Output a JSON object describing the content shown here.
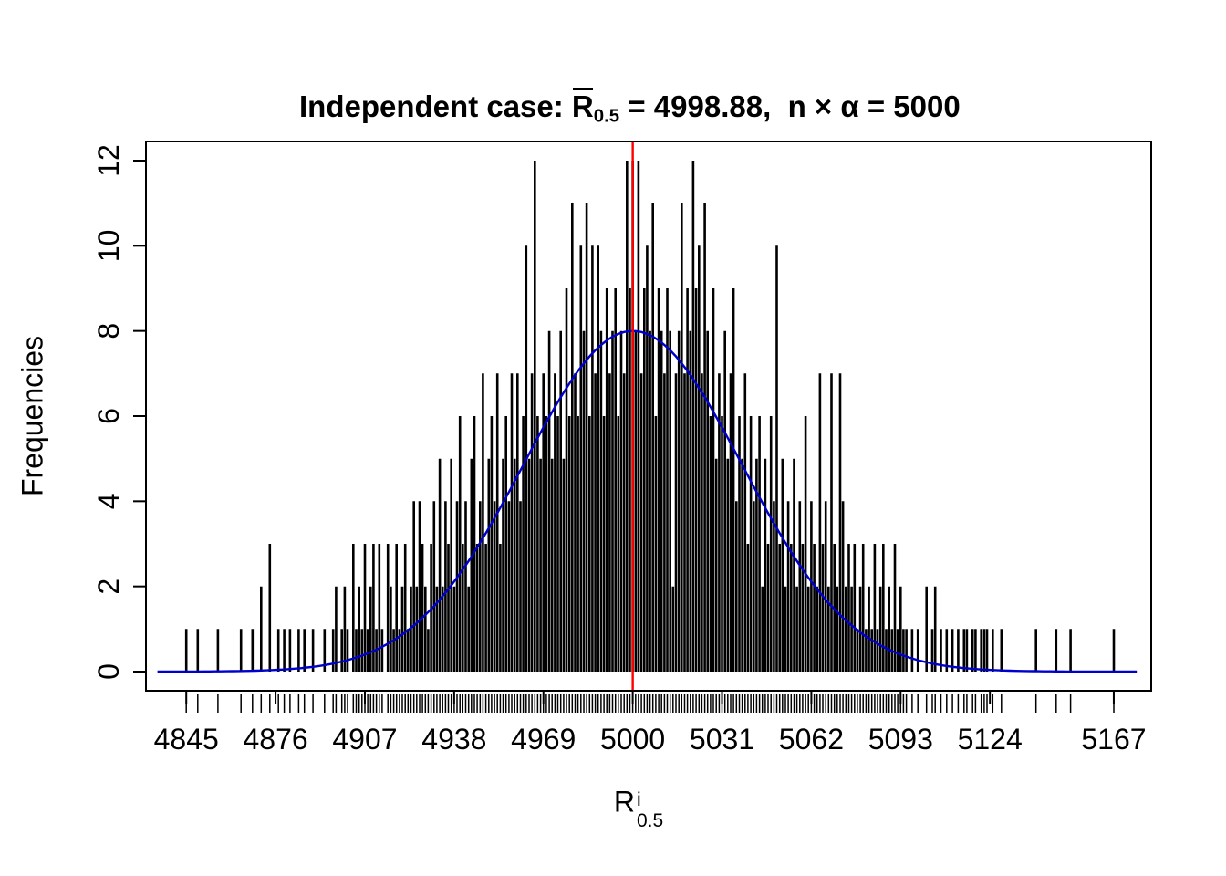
{
  "title_parts": {
    "prefix": "Independent case: ",
    "r_base": "R",
    "r_sub": "0.5",
    "after_r": " = 4998.88,  ",
    "rest": "n × α = 5000"
  },
  "chart_data": {
    "type": "bar",
    "subtype": "frequency-spike-histogram",
    "title": "Independent case: R̄_0.5 = 4998.88, n × α = 5000",
    "xlabel": "R^i_0.5",
    "xlabel_parts": {
      "base": "R",
      "sup": "i",
      "sub": "0.5"
    },
    "ylabel": "Frequencies",
    "x_ticks": [
      4845,
      4876,
      4907,
      4938,
      4969,
      5000,
      5031,
      5062,
      5093,
      5124,
      5167
    ],
    "y_ticks": [
      0,
      2,
      4,
      6,
      8,
      10,
      12
    ],
    "xlim": [
      4831,
      5180
    ],
    "ylim": [
      0,
      12
    ],
    "grid": false,
    "legend": null,
    "bar_color": "#000000",
    "mean_value": 4998.88,
    "ref_line": {
      "x": 5000,
      "color": "#ff0000"
    },
    "curve": {
      "shape": "normal",
      "mean": 5000,
      "sd": 38,
      "peak": 8,
      "color": "#0000cd"
    },
    "rug": true,
    "spikes": {
      "x_start": 4845,
      "step": 1,
      "heights": [
        1,
        0,
        0,
        0,
        1,
        0,
        0,
        0,
        0,
        0,
        0,
        1,
        0,
        0,
        0,
        0,
        0,
        0,
        0,
        1,
        0,
        0,
        0,
        1,
        0,
        0,
        2,
        0,
        0,
        3,
        0,
        0,
        1,
        0,
        1,
        0,
        1,
        0,
        0,
        1,
        0,
        1,
        0,
        0,
        1,
        0,
        0,
        0,
        1,
        0,
        0,
        1,
        2,
        0,
        1,
        2,
        1,
        0,
        3,
        1,
        2,
        1,
        3,
        1,
        2,
        3,
        1,
        3,
        1,
        0,
        3,
        2,
        1,
        3,
        1,
        2,
        3,
        1,
        2,
        4,
        2,
        4,
        3,
        2,
        1,
        3,
        4,
        2,
        5,
        2,
        4,
        3,
        5,
        2,
        4,
        6,
        3,
        4,
        2,
        5,
        6,
        3,
        4,
        7,
        3,
        5,
        6,
        4,
        7,
        3,
        5,
        6,
        4,
        7,
        5,
        7,
        4,
        6,
        10,
        5,
        7,
        12,
        6,
        5,
        7,
        6,
        8,
        5,
        7,
        6,
        8,
        5,
        9,
        6,
        11,
        7,
        6,
        10,
        8,
        11,
        6,
        10,
        7,
        10,
        8,
        6,
        9,
        7,
        8,
        9,
        6,
        8,
        7,
        12,
        9,
        12,
        8,
        12,
        7,
        9,
        10,
        8,
        11,
        6,
        9,
        8,
        7,
        9,
        8,
        2,
        7,
        8,
        11,
        7,
        9,
        8,
        12,
        9,
        10,
        7,
        11,
        8,
        6,
        9,
        5,
        7,
        6,
        8,
        5,
        7,
        9,
        4,
        6,
        5,
        7,
        3,
        6,
        4,
        5,
        6,
        2,
        5,
        3,
        6,
        4,
        10,
        3,
        5,
        2,
        4,
        3,
        5,
        2,
        4,
        3,
        6,
        2,
        4,
        3,
        2,
        7,
        3,
        4,
        2,
        7,
        3,
        2,
        7,
        4,
        2,
        3,
        2,
        3,
        1,
        2,
        3,
        1,
        2,
        1,
        3,
        1,
        2,
        3,
        1,
        2,
        1,
        3,
        1,
        2,
        1,
        1,
        0,
        1,
        0,
        1,
        0,
        0,
        2,
        0,
        1,
        2,
        0,
        1,
        0,
        1,
        0,
        1,
        0,
        1,
        0,
        1,
        1,
        0,
        1,
        1,
        0,
        1,
        1,
        1,
        0,
        1,
        0,
        0,
        1,
        0,
        0,
        0,
        0,
        0,
        0,
        0,
        0,
        0,
        0,
        0,
        1,
        0,
        0,
        0,
        0,
        0,
        0,
        1,
        0,
        0,
        0,
        0,
        1,
        0,
        0,
        0,
        0,
        0,
        0,
        0,
        0,
        0,
        0,
        0,
        0,
        0,
        0,
        1
      ]
    }
  }
}
